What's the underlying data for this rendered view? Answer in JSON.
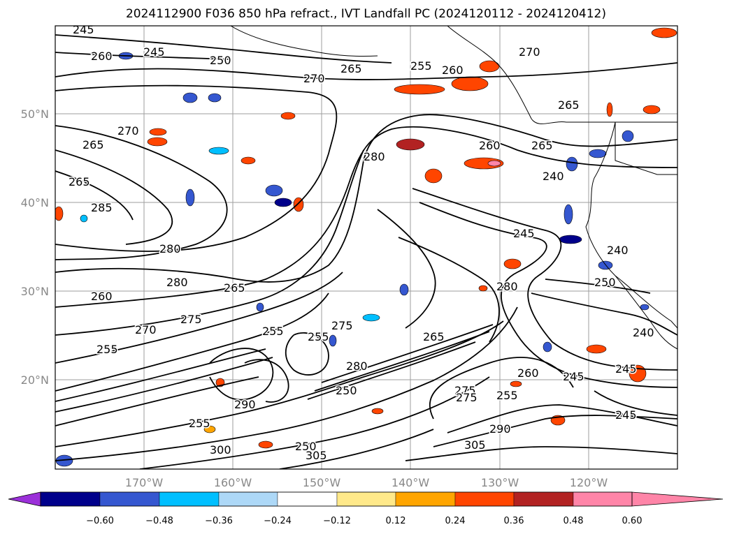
{
  "title": "2024112900 F036 850 hPa refract., IVT Landfall PC (2024120112 - 2024120412)",
  "axes": {
    "lat_labels": [
      "50°N",
      "40°N",
      "30°N",
      "20°N"
    ],
    "lon_labels": [
      "170°W",
      "160°W",
      "150°W",
      "140°W",
      "130°W",
      "120°W"
    ]
  },
  "colorbar": {
    "tick_labels": [
      "−0.60",
      "−0.48",
      "−0.36",
      "−0.24",
      "−0.12",
      "0.12",
      "0.24",
      "0.36",
      "0.48",
      "0.60"
    ],
    "colors": [
      "#9b30d9",
      "#00008b",
      "#3557d0",
      "#00bfff",
      "#add8f7",
      "#ffffff",
      "#ffe98a",
      "#ffa500",
      "#ff4500",
      "#b22222",
      "#ff85a8"
    ]
  },
  "contour_labels": [
    "245",
    "260",
    "245",
    "250",
    "265",
    "270",
    "255",
    "260",
    "270",
    "265",
    "270",
    "265",
    "265",
    "285",
    "280",
    "280",
    "260",
    "275",
    "270",
    "255",
    "280",
    "265",
    "290",
    "255",
    "255",
    "275",
    "280",
    "255",
    "265",
    "275",
    "250",
    "305",
    "290",
    "305",
    "250",
    "300",
    "280",
    "260",
    "240",
    "265",
    "250",
    "245",
    "240",
    "240",
    "245",
    "245",
    "245",
    "255",
    "275",
    "260"
  ],
  "colors": {
    "plot_border": "#000000",
    "grid": "#9e9e9e",
    "contour": "#000000"
  }
}
